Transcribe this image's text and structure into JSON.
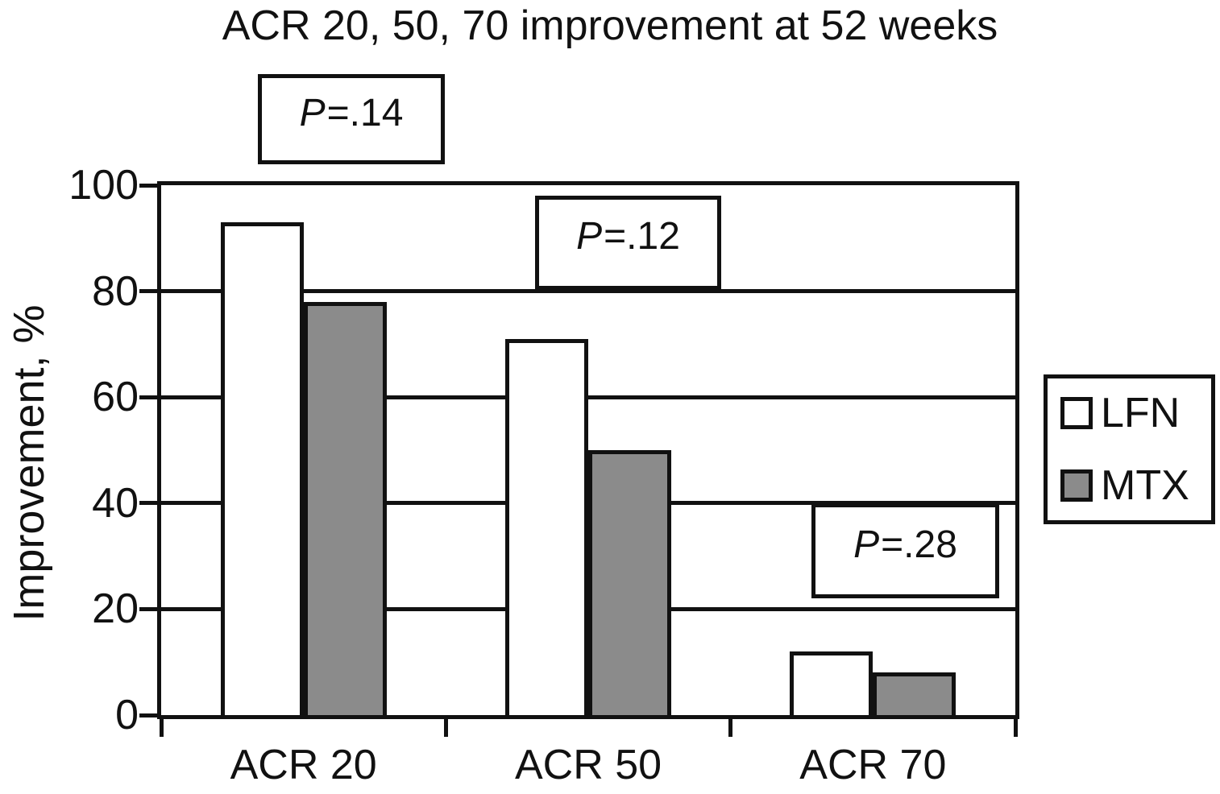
{
  "title": "ACR 20, 50, 70 improvement at 52 weeks",
  "chart_data": {
    "type": "bar",
    "title": "ACR 20, 50, 70 improvement at 52 weeks",
    "ylabel": "Improvement, %",
    "xlabel": "",
    "ylim": [
      0,
      100
    ],
    "y_ticks": [
      0,
      20,
      40,
      60,
      80,
      100
    ],
    "grid": "horizontal gridlines at 20, 40, 60, 80 plus top border at 100",
    "legend_position": "right of plot",
    "categories": [
      "ACR 20",
      "ACR 50",
      "ACR 70"
    ],
    "series": [
      {
        "name": "LFN",
        "fill": "#ffffff",
        "values": [
          93,
          71,
          12
        ]
      },
      {
        "name": "MTX",
        "fill": "#8b8b8b",
        "values": [
          78,
          50,
          8
        ]
      }
    ],
    "annotations": [
      {
        "text": "P=.14",
        "italic_part": "P",
        "value_part": "=.14",
        "over_category": "ACR 20"
      },
      {
        "text": "P=.12",
        "italic_part": "P",
        "value_part": "=.12",
        "over_category": "ACR 50"
      },
      {
        "text": "P=.28",
        "italic_part": "P",
        "value_part": "=.28",
        "over_category": "ACR 70"
      }
    ],
    "axis_color": "#111111",
    "background_color": "#ffffff"
  }
}
